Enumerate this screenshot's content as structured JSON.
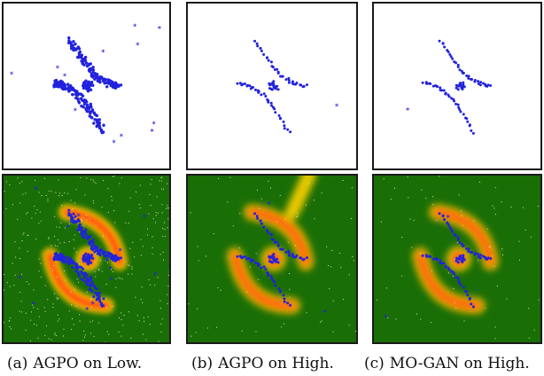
{
  "figure": {
    "columns": [
      {
        "id": "a",
        "tag": "(a)",
        "label": "AGPO on Low.",
        "density": "dense",
        "jitter": 1.6,
        "outliers": 12
      },
      {
        "id": "b",
        "tag": "(b)",
        "label": "AGPO on High.",
        "density": "sparse",
        "jitter": 0.7,
        "outliers": 1
      },
      {
        "id": "c",
        "tag": "(c)",
        "label": "MO-GAN on High.",
        "density": "sparse",
        "jitter": 0.6,
        "outliers": 1
      }
    ],
    "colors": {
      "point": "#2222dd",
      "field_background": "#1a6e06",
      "ridge_outer": "#e6c800",
      "ridge_mid": "#ff8a00",
      "ridge_core": "#ff4a10",
      "frame": "#1a1a1a"
    }
  }
}
